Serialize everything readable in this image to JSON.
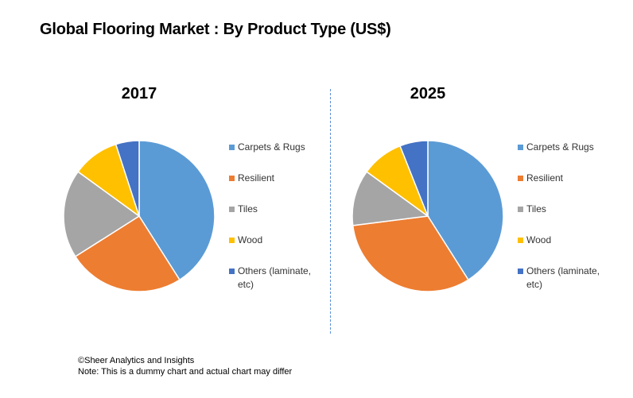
{
  "title": "Global Flooring Market : By Product Type (US$)",
  "footer": {
    "copyright": "©Sheer Analytics and Insights",
    "note": "Note: This is a dummy chart and actual chart may differ"
  },
  "chart_data": [
    {
      "type": "pie",
      "title": "2017",
      "categories": [
        "Carpets & Rugs",
        "Resilient",
        "Tiles",
        "Wood",
        "Others (laminate, etc)"
      ],
      "values": [
        41,
        25,
        19,
        10,
        5
      ],
      "colors": [
        "#5b9bd5",
        "#ed7d31",
        "#a5a5a5",
        "#ffc000",
        "#4472c4"
      ],
      "legend_position": "right"
    },
    {
      "type": "pie",
      "title": "2025",
      "categories": [
        "Carpets & Rugs",
        "Resilient",
        "Tiles",
        "Wood",
        "Others (laminate, etc)"
      ],
      "values": [
        41,
        32,
        12,
        9,
        6
      ],
      "colors": [
        "#5b9bd5",
        "#ed7d31",
        "#a5a5a5",
        "#ffc000",
        "#4472c4"
      ],
      "legend_position": "right"
    }
  ]
}
